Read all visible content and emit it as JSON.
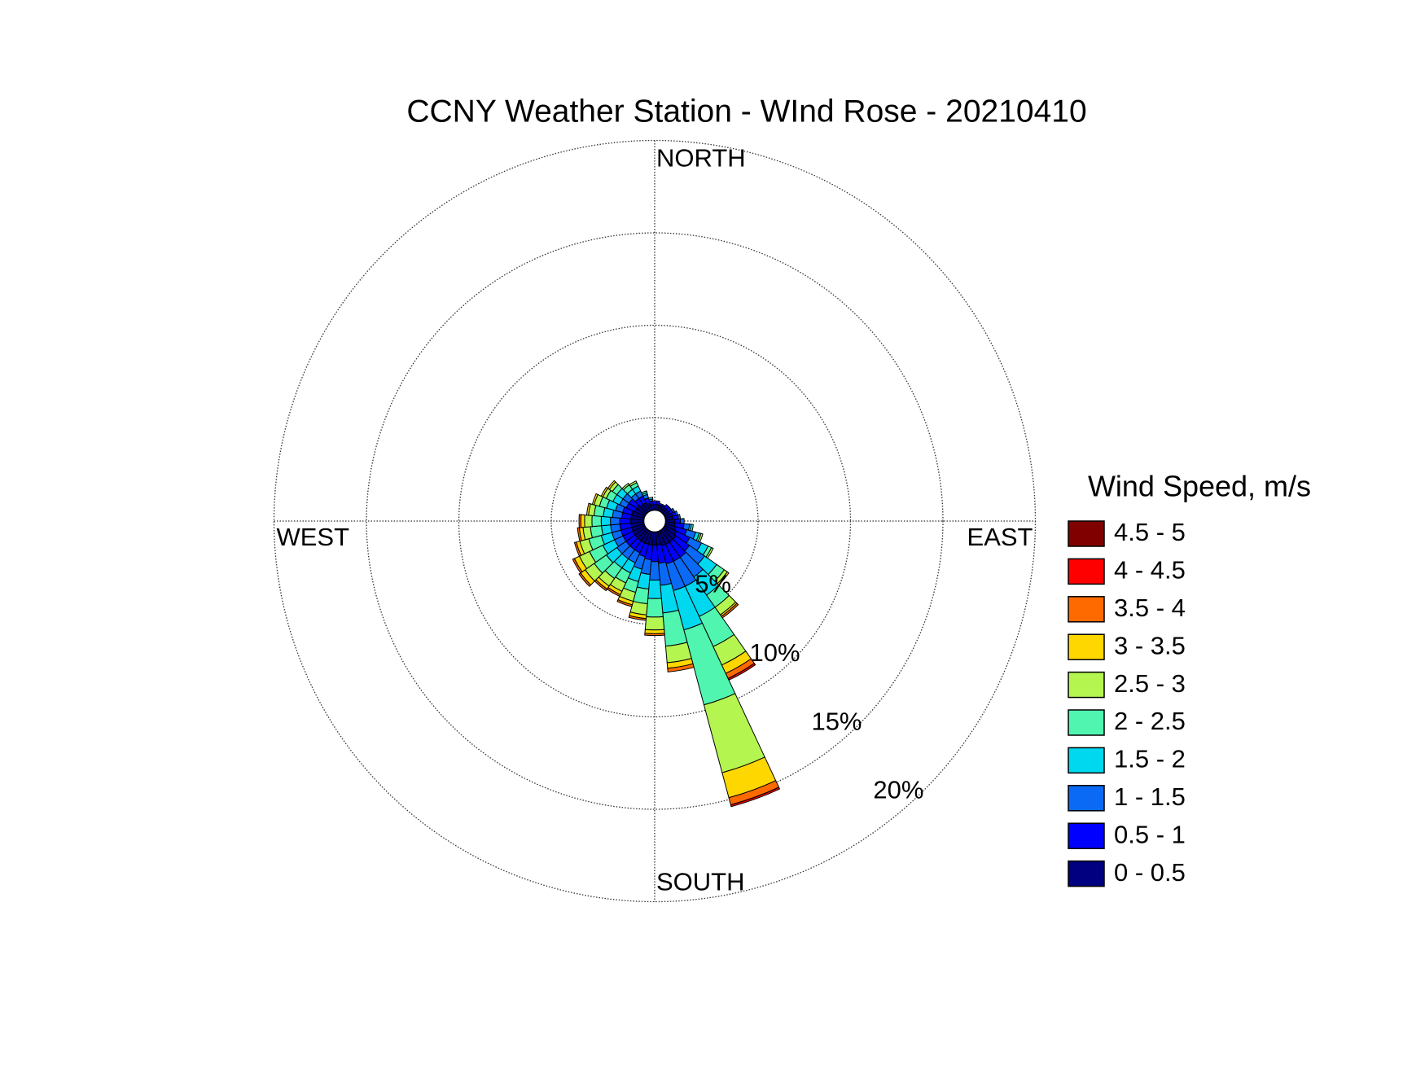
{
  "chart_data": {
    "type": "wind_rose",
    "title": "CCNY Weather Station - WInd Rose - 20210410",
    "compass": [
      "NORTH",
      "EAST",
      "SOUTH",
      "WEST"
    ],
    "legend_title": "Wind Speed, m/s",
    "directions": [
      0,
      10,
      20,
      30,
      40,
      50,
      60,
      70,
      80,
      90,
      100,
      110,
      120,
      130,
      140,
      150,
      160,
      170,
      180,
      190,
      200,
      210,
      220,
      230,
      240,
      250,
      260,
      270,
      280,
      290,
      300,
      310,
      320,
      330,
      340,
      350
    ],
    "rlim": [
      0,
      20
    ],
    "rticks": [
      {
        "value": 5,
        "label": "5%"
      },
      {
        "value": 10,
        "label": "10%"
      },
      {
        "value": 15,
        "label": "15%"
      },
      {
        "value": 20,
        "label": "20%"
      }
    ],
    "grid": true,
    "series": [
      {
        "name": "0 - 0.5",
        "color": "#000080",
        "values": [
          0.3,
          0.3,
          0.3,
          0.3,
          0.3,
          0.3,
          0.3,
          0.4,
          0.4,
          0.5,
          0.5,
          0.6,
          0.7,
          0.8,
          0.8,
          0.8,
          0.8,
          0.7,
          0.7,
          0.7,
          0.7,
          0.7,
          0.7,
          0.7,
          0.7,
          0.7,
          0.7,
          0.7,
          0.7,
          0.7,
          0.6,
          0.6,
          0.5,
          0.5,
          0.4,
          0.3
        ]
      },
      {
        "name": "0.5 - 1",
        "color": "#0000ff",
        "values": [
          0.2,
          0.2,
          0.1,
          0.1,
          0.2,
          0.2,
          0.2,
          0.2,
          0.3,
          0.3,
          0.5,
          0.6,
          0.8,
          0.9,
          1.0,
          1.0,
          1.0,
          1.0,
          0.9,
          0.8,
          0.7,
          0.6,
          0.6,
          0.6,
          0.6,
          0.6,
          0.6,
          0.6,
          0.5,
          0.5,
          0.5,
          0.5,
          0.4,
          0.4,
          0.3,
          0.2
        ]
      },
      {
        "name": "1 - 1.5",
        "color": "#0a6af5",
        "values": [
          0,
          0,
          0,
          0,
          0,
          0,
          0.1,
          0.1,
          0.1,
          0.2,
          0.3,
          0.5,
          0.7,
          1.0,
          1.3,
          1.5,
          1.5,
          1.2,
          1.0,
          0.8,
          0.7,
          0.6,
          0.6,
          0.6,
          0.5,
          0.5,
          0.5,
          0.5,
          0.5,
          0.4,
          0.4,
          0.4,
          0.3,
          0.3,
          0.2,
          0.1
        ]
      },
      {
        "name": "1.5 - 2",
        "color": "#00d8f0",
        "values": [
          0,
          0,
          0,
          0,
          0,
          0,
          0,
          0,
          0,
          0,
          0.1,
          0.2,
          0.4,
          0.8,
          1.2,
          1.8,
          2.2,
          1.5,
          1.0,
          0.8,
          0.7,
          0.6,
          0.6,
          0.7,
          0.7,
          0.6,
          0.5,
          0.5,
          0.5,
          0.5,
          0.4,
          0.4,
          0.3,
          0.3,
          0.1,
          0.1
        ]
      },
      {
        "name": "2 - 2.5",
        "color": "#50f5b0",
        "values": [
          0,
          0,
          0,
          0,
          0,
          0,
          0,
          0,
          0,
          0,
          0.1,
          0.1,
          0.2,
          0.5,
          0.8,
          1.8,
          4.2,
          1.8,
          1.0,
          0.8,
          0.6,
          0.6,
          0.7,
          0.8,
          0.8,
          0.7,
          0.6,
          0.5,
          0.5,
          0.4,
          0.4,
          0.3,
          0.3,
          0.2,
          0.1,
          0
        ]
      },
      {
        "name": "2.5 - 3",
        "color": "#b4f550",
        "values": [
          0,
          0,
          0,
          0,
          0,
          0,
          0,
          0,
          0,
          0,
          0,
          0.1,
          0.1,
          0.2,
          0.5,
          1.1,
          3.8,
          0.9,
          0.7,
          0.6,
          0.5,
          0.5,
          0.5,
          0.6,
          0.6,
          0.5,
          0.4,
          0.4,
          0.3,
          0.3,
          0.2,
          0.2,
          0.1,
          0.1,
          0,
          0
        ]
      },
      {
        "name": "3 - 3.5",
        "color": "#ffd700",
        "values": [
          0,
          0,
          0,
          0,
          0,
          0,
          0,
          0,
          0,
          0,
          0,
          0,
          0,
          0.1,
          0.1,
          0.5,
          1.4,
          0.3,
          0.2,
          0.2,
          0.2,
          0.2,
          0.2,
          0.3,
          0.3,
          0.2,
          0.2,
          0.2,
          0.1,
          0.1,
          0.1,
          0.1,
          0,
          0,
          0,
          0
        ]
      },
      {
        "name": "3.5 - 4",
        "color": "#ff6a00",
        "values": [
          0,
          0,
          0,
          0,
          0,
          0,
          0,
          0,
          0,
          0,
          0,
          0,
          0,
          0,
          0.1,
          0.3,
          0.4,
          0.2,
          0.1,
          0.1,
          0.1,
          0.1,
          0.1,
          0.1,
          0.1,
          0.1,
          0.1,
          0.1,
          0,
          0,
          0,
          0,
          0,
          0,
          0,
          0
        ]
      },
      {
        "name": "4 - 4.5",
        "color": "#ff0000",
        "values": [
          0,
          0,
          0,
          0,
          0,
          0,
          0,
          0,
          0,
          0,
          0,
          0,
          0,
          0,
          0,
          0.1,
          0.1,
          0,
          0,
          0,
          0,
          0,
          0,
          0,
          0,
          0,
          0,
          0,
          0,
          0,
          0,
          0,
          0,
          0,
          0,
          0
        ]
      },
      {
        "name": "4.5 - 5",
        "color": "#800000",
        "values": [
          0,
          0,
          0,
          0,
          0,
          0,
          0,
          0,
          0,
          0,
          0,
          0,
          0,
          0,
          0,
          0,
          0,
          0,
          0,
          0,
          0,
          0,
          0,
          0,
          0,
          0,
          0,
          0,
          0,
          0,
          0,
          0,
          0,
          0,
          0,
          0
        ]
      }
    ]
  }
}
